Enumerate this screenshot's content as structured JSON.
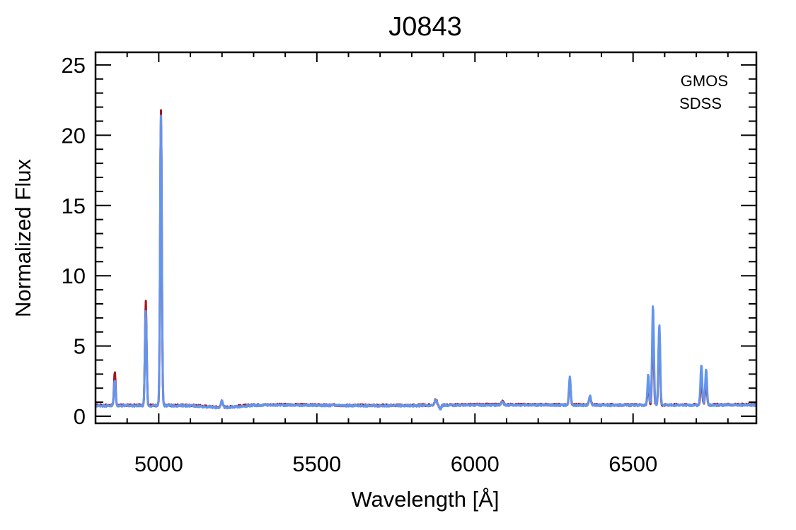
{
  "chart_data": {
    "type": "line",
    "title": "J0843",
    "xlabel": "Wavelength [Å]",
    "ylabel": "Normalized Flux",
    "xlim": [
      4800,
      6890
    ],
    "ylim": [
      -0.5,
      25.9
    ],
    "x_ticks": [
      5000,
      5500,
      6000,
      6500
    ],
    "x_tick_labels": [
      "5000",
      "5500",
      "6000",
      "6500"
    ],
    "y_ticks": [
      0,
      5,
      10,
      15,
      20,
      25
    ],
    "y_tick_labels": [
      "0",
      "5",
      "10",
      "15",
      "20",
      "25"
    ],
    "x_minor_step": 100,
    "y_minor_step": 1,
    "grid": false,
    "legend_position": "top-right",
    "continuum": [
      [
        4800,
        0.75
      ],
      [
        5100,
        0.75
      ],
      [
        5200,
        0.6
      ],
      [
        5300,
        0.78
      ],
      [
        5400,
        0.8
      ],
      [
        5600,
        0.75
      ],
      [
        5800,
        0.75
      ],
      [
        6000,
        0.8
      ],
      [
        6200,
        0.8
      ],
      [
        6500,
        0.78
      ],
      [
        6890,
        0.8
      ]
    ],
    "series": [
      {
        "name": "GMOS",
        "color": "#a5161c",
        "continuum_offset": 0.03,
        "features": [
          {
            "center": 4861,
            "peak": 2.4,
            "width": 2.4
          },
          {
            "center": 4959,
            "peak": 7.4,
            "width": 2.6
          },
          {
            "center": 5007,
            "peak": 21.0,
            "width": 2.6
          },
          {
            "center": 5200,
            "peak": 0.5,
            "width": 3.0
          },
          {
            "center": 5876,
            "peak": 0.4,
            "width": 3.5
          },
          {
            "center": 5890,
            "peak": -0.3,
            "width": 3.0
          },
          {
            "center": 6087,
            "peak": 0.25,
            "width": 3.0
          },
          {
            "center": 6300,
            "peak": 1.8,
            "width": 2.6
          },
          {
            "center": 6364,
            "peak": 0.65,
            "width": 2.6
          },
          {
            "center": 6548,
            "peak": 1.6,
            "width": 2.4
          },
          {
            "center": 6563,
            "peak": 5.9,
            "width": 2.6
          },
          {
            "center": 6583,
            "peak": 5.4,
            "width": 2.6
          },
          {
            "center": 6716,
            "peak": 2.1,
            "width": 2.6
          },
          {
            "center": 6731,
            "peak": 1.95,
            "width": 2.6
          }
        ]
      },
      {
        "name": "SDSS",
        "color": "#6495ed",
        "continuum_offset": 0.0,
        "features": [
          {
            "center": 4861,
            "peak": 1.8,
            "width": 2.6
          },
          {
            "center": 4959,
            "peak": 6.8,
            "width": 2.7
          },
          {
            "center": 5007,
            "peak": 20.7,
            "width": 2.7
          },
          {
            "center": 5200,
            "peak": 0.5,
            "width": 3.0
          },
          {
            "center": 5876,
            "peak": 0.4,
            "width": 3.5
          },
          {
            "center": 5890,
            "peak": -0.3,
            "width": 3.0
          },
          {
            "center": 6087,
            "peak": 0.25,
            "width": 3.0
          },
          {
            "center": 6300,
            "peak": 2.0,
            "width": 2.8
          },
          {
            "center": 6364,
            "peak": 0.7,
            "width": 2.8
          },
          {
            "center": 6548,
            "peak": 2.2,
            "width": 2.6
          },
          {
            "center": 6563,
            "peak": 7.1,
            "width": 2.8
          },
          {
            "center": 6583,
            "peak": 5.8,
            "width": 2.8
          },
          {
            "center": 6716,
            "peak": 2.9,
            "width": 2.8
          },
          {
            "center": 6731,
            "peak": 2.6,
            "width": 2.8
          }
        ]
      }
    ]
  }
}
